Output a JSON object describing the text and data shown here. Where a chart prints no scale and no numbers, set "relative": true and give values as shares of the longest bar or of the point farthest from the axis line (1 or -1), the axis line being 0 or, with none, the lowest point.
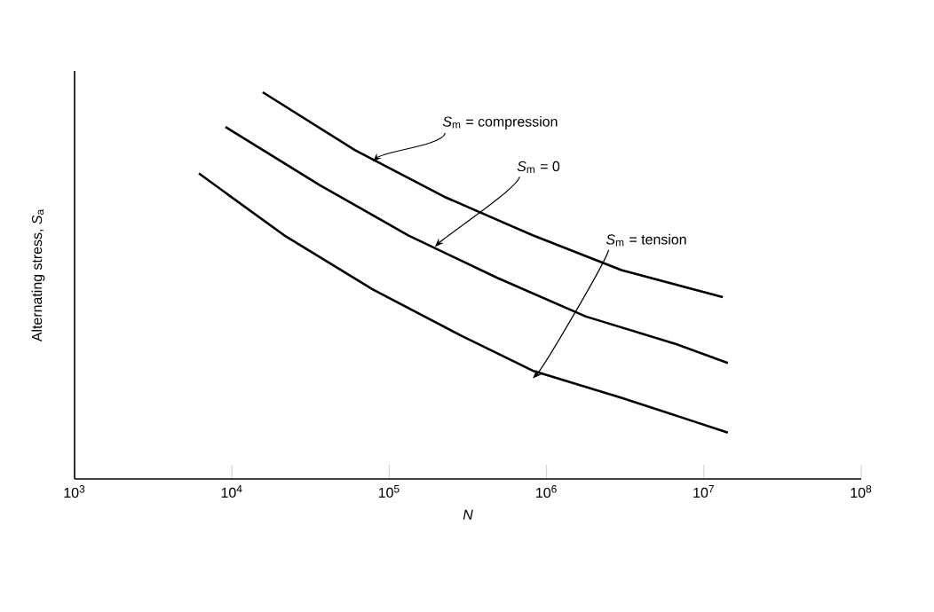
{
  "chart_data": {
    "type": "line",
    "relative": true,
    "xlabel": "*N*",
    "ylabel": "Alternating stress, *S*$_{a}$",
    "log": "x",
    "xlim": [
      1000,
      100000000
    ],
    "xticks": [
      {
        "value": 1000,
        "label": "10$^{3}$"
      },
      {
        "value": 10000,
        "label": "10$^{4}$"
      },
      {
        "value": 100000,
        "label": "10$^{5}$"
      },
      {
        "value": 1000000,
        "label": "10$^{6}$"
      },
      {
        "value": 10000000,
        "label": "10$^{7}$"
      },
      {
        "value": 100000000,
        "label": "10$^{8}$"
      }
    ],
    "marker": "none",
    "line_style": "solid",
    "grid": false,
    "series": [
      {
        "color": "#000000",
        "x": [
          15700,
          60700,
          223000,
          817000,
          2990000,
          13200000
        ],
        "values": [
          1,
          0.85,
          0.73,
          0.63,
          0.54,
          0.47
        ]
      },
      {
        "color": "#000000",
        "x": [
          9100,
          36100,
          132000,
          486000,
          1780000,
          6530000,
          14200000
        ],
        "values": [
          0.91,
          0.76,
          0.63,
          0.52,
          0.42,
          0.35,
          0.3
        ]
      },
      {
        "color": "#000000",
        "x": [
          6170,
          21500,
          78700,
          288000,
          817000,
          2990000,
          14200000
        ],
        "values": [
          0.79,
          0.63,
          0.49,
          0.37,
          0.28,
          0.21,
          0.12
        ]
      }
    ],
    "annotations": [
      {
        "text": "*S*$_{m}$ = compression",
        "x": 78700,
        "y": 0.82
      },
      {
        "text": "*S*$_{m}$ = 0",
        "x": 195000,
        "y": 0.6
      },
      {
        "text": "*S*$_{m}$ = tension",
        "x": 817000,
        "y": 0.26
      }
    ]
  }
}
